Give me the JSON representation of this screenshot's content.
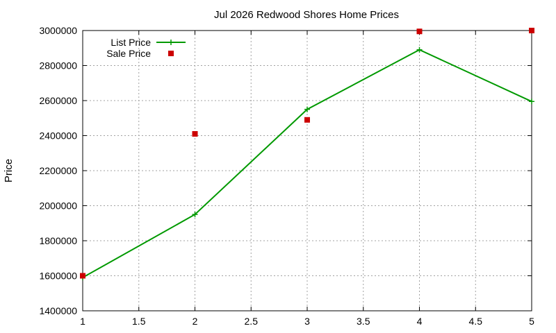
{
  "chart_data": {
    "type": "line",
    "title": "Jul 2026 Redwood Shores Home Prices",
    "xlabel": "",
    "ylabel": "Price",
    "xlim": [
      1,
      5
    ],
    "ylim": [
      1400000,
      3000000
    ],
    "xticks": [
      "1",
      "1.5",
      "2",
      "2.5",
      "3",
      "3.5",
      "4",
      "4.5",
      "5"
    ],
    "yticks": [
      "1400000",
      "1600000",
      "1800000",
      "2000000",
      "2200000",
      "2400000",
      "2600000",
      "2800000",
      "3000000"
    ],
    "grid": true,
    "legend_position": "top-left",
    "series": [
      {
        "name": "List Price",
        "style": "line-with-plus-markers",
        "color": "#009900",
        "x": [
          1,
          2,
          3,
          4,
          5
        ],
        "values": [
          1590000,
          1950000,
          2550000,
          2890000,
          2595000
        ]
      },
      {
        "name": "Sale Price",
        "style": "square-markers",
        "color": "#cc0000",
        "x": [
          1,
          2,
          3,
          4,
          5
        ],
        "values": [
          1600000,
          2410000,
          2490000,
          2995000,
          3000000
        ]
      }
    ]
  }
}
